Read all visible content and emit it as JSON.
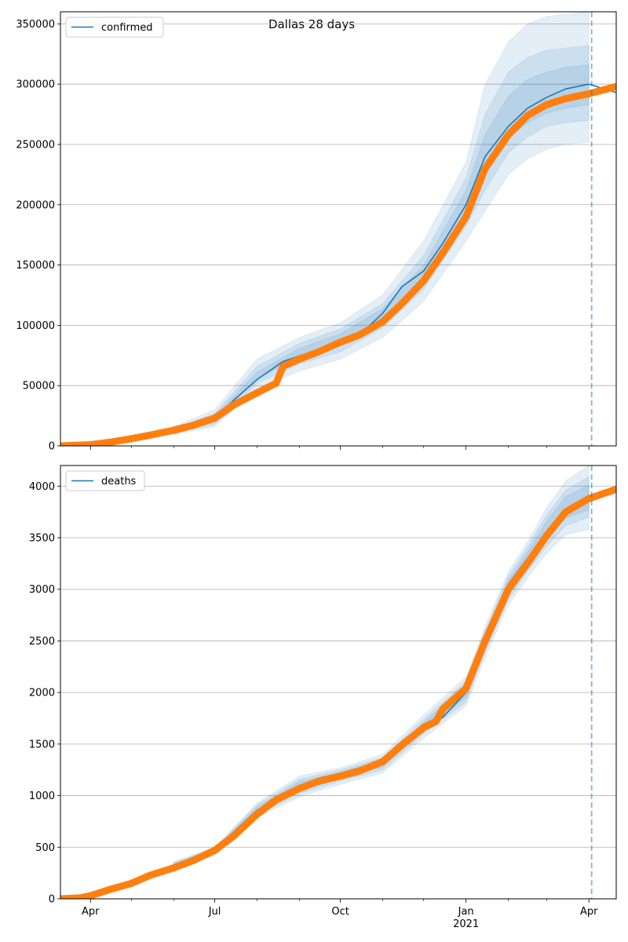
{
  "figure": {
    "title": "Dallas 28 days"
  },
  "colors": {
    "model": "#1f77b4",
    "observed": "#ff7f0e",
    "band": "#1f77b4",
    "grid": "#b0b0b0"
  },
  "x_axis": {
    "ticks": [
      {
        "date": "2020-04-01",
        "label": "Apr",
        "sublabel": ""
      },
      {
        "date": "2020-07-01",
        "label": "Jul",
        "sublabel": ""
      },
      {
        "date": "2020-10-01",
        "label": "Oct",
        "sublabel": ""
      },
      {
        "date": "2021-01-01",
        "label": "Jan",
        "sublabel": "2021"
      },
      {
        "date": "2021-04-01",
        "label": "Apr",
        "sublabel": ""
      }
    ]
  },
  "chart_data": [
    {
      "type": "line",
      "legend": "confirmed",
      "legend_position": "top-left",
      "grid": "horizontal",
      "xlim": [
        "2020-03-10",
        "2021-04-21"
      ],
      "ylim": [
        0,
        360000
      ],
      "y_ticks": [
        0,
        50000,
        100000,
        150000,
        200000,
        250000,
        300000,
        350000
      ],
      "forecast_start": "2021-04-03",
      "series": [
        {
          "name": "confirmed",
          "role": "model",
          "x": [
            "2020-03-10",
            "2020-04-01",
            "2020-05-01",
            "2020-06-01",
            "2020-07-01",
            "2020-07-15",
            "2020-08-01",
            "2020-08-20",
            "2020-09-15",
            "2020-10-15",
            "2020-11-01",
            "2020-11-15",
            "2020-12-01",
            "2020-12-15",
            "2021-01-01",
            "2021-01-15",
            "2021-02-01",
            "2021-02-15",
            "2021-03-01",
            "2021-03-15",
            "2021-04-01",
            "2021-04-21"
          ],
          "y": [
            0,
            500,
            5000,
            12000,
            22000,
            38000,
            55000,
            70000,
            80000,
            92000,
            110000,
            132000,
            145000,
            168000,
            200000,
            240000,
            265000,
            280000,
            289000,
            296000,
            300000,
            293000
          ]
        },
        {
          "name": "",
          "role": "observed",
          "x": [
            "2020-03-10",
            "2020-04-01",
            "2020-04-15",
            "2020-05-01",
            "2020-05-15",
            "2020-06-01",
            "2020-06-15",
            "2020-07-01",
            "2020-07-15",
            "2020-08-01",
            "2020-08-15",
            "2020-08-20",
            "2020-09-01",
            "2020-09-15",
            "2020-10-01",
            "2020-10-15",
            "2020-11-01",
            "2020-11-15",
            "2020-12-01",
            "2020-12-15",
            "2021-01-01",
            "2021-01-15",
            "2021-02-01",
            "2021-02-15",
            "2021-03-01",
            "2021-03-15",
            "2021-04-01",
            "2021-04-21"
          ],
          "y": [
            0,
            1000,
            3000,
            6000,
            9000,
            13000,
            17000,
            23000,
            34000,
            44000,
            52000,
            66000,
            72000,
            78000,
            86000,
            92000,
            103000,
            118000,
            137000,
            160000,
            190000,
            230000,
            258000,
            274000,
            283000,
            288000,
            292000,
            298000
          ]
        }
      ],
      "bands": [
        {
          "x": [
            "2020-06-01",
            "2020-07-01",
            "2020-08-01",
            "2020-09-01",
            "2020-10-01",
            "2020-11-01",
            "2020-12-01",
            "2021-01-01",
            "2021-01-15",
            "2021-02-01",
            "2021-02-15",
            "2021-03-01",
            "2021-03-15",
            "2021-04-01"
          ],
          "upper": [
            16000,
            30000,
            72000,
            90000,
            102000,
            125000,
            170000,
            235000,
            300000,
            335000,
            350000,
            356000,
            358000,
            360000
          ],
          "lower": [
            9000,
            16000,
            48000,
            62000,
            72000,
            90000,
            120000,
            170000,
            195000,
            225000,
            238000,
            246000,
            250000,
            252000
          ]
        },
        {
          "x": [
            "2020-06-01",
            "2020-07-01",
            "2020-08-01",
            "2020-09-01",
            "2020-10-01",
            "2020-11-01",
            "2020-12-01",
            "2021-01-01",
            "2021-01-15",
            "2021-02-01",
            "2021-02-15",
            "2021-03-01",
            "2021-03-15",
            "2021-04-01"
          ],
          "upper": [
            14500,
            27000,
            66000,
            85000,
            97000,
            118000,
            158000,
            222000,
            275000,
            310000,
            322000,
            328000,
            330000,
            332000
          ],
          "lower": [
            10000,
            18000,
            52000,
            68000,
            78000,
            98000,
            130000,
            182000,
            212000,
            243000,
            256000,
            265000,
            268000,
            270000
          ]
        },
        {
          "x": [
            "2020-06-01",
            "2020-07-01",
            "2020-08-01",
            "2020-09-01",
            "2020-10-01",
            "2020-11-01",
            "2020-12-01",
            "2021-01-01",
            "2021-01-15",
            "2021-02-01",
            "2021-02-15",
            "2021-03-01",
            "2021-03-15",
            "2021-04-01"
          ],
          "upper": [
            13500,
            25000,
            61000,
            81000,
            93000,
            114000,
            150000,
            212000,
            258000,
            290000,
            304000,
            310000,
            314000,
            316000
          ],
          "lower": [
            11000,
            20000,
            56000,
            73000,
            84000,
            104000,
            138000,
            190000,
            225000,
            255000,
            268000,
            276000,
            280000,
            283000
          ]
        }
      ]
    },
    {
      "type": "line",
      "legend": "deaths",
      "legend_position": "top-left",
      "grid": "horizontal",
      "xlim": [
        "2020-03-10",
        "2021-04-21"
      ],
      "ylim": [
        0,
        4200
      ],
      "y_ticks": [
        0,
        500,
        1000,
        1500,
        2000,
        2500,
        3000,
        3500,
        4000
      ],
      "forecast_start": "2021-04-03",
      "series": [
        {
          "name": "deaths",
          "role": "model",
          "x": [
            "2020-03-10",
            "2020-04-01",
            "2020-05-01",
            "2020-06-01",
            "2020-07-01",
            "2020-07-15",
            "2020-08-01",
            "2020-08-20",
            "2020-09-15",
            "2020-10-15",
            "2020-11-01",
            "2020-11-15",
            "2020-12-01",
            "2020-12-15",
            "2021-01-01",
            "2021-01-15",
            "2021-02-01",
            "2021-02-15",
            "2021-03-01",
            "2021-03-15",
            "2021-04-01",
            "2021-04-21"
          ],
          "y": [
            0,
            30,
            160,
            330,
            460,
            650,
            860,
            1000,
            1110,
            1210,
            1320,
            1480,
            1650,
            1760,
            2000,
            2500,
            3050,
            3300,
            3550,
            3780,
            3880,
            3960
          ]
        },
        {
          "name": "",
          "role": "observed",
          "x": [
            "2020-03-10",
            "2020-03-25",
            "2020-04-01",
            "2020-04-15",
            "2020-05-01",
            "2020-05-15",
            "2020-06-01",
            "2020-06-15",
            "2020-07-01",
            "2020-07-15",
            "2020-08-01",
            "2020-08-15",
            "2020-09-01",
            "2020-09-15",
            "2020-10-01",
            "2020-10-15",
            "2020-11-01",
            "2020-11-15",
            "2020-12-01",
            "2020-12-10",
            "2020-12-15",
            "2021-01-01",
            "2021-01-15",
            "2021-02-01",
            "2021-02-15",
            "2021-03-01",
            "2021-03-15",
            "2021-04-01",
            "2021-04-21"
          ],
          "y": [
            0,
            10,
            30,
            90,
            150,
            230,
            300,
            370,
            470,
            610,
            820,
            960,
            1070,
            1140,
            1190,
            1240,
            1330,
            1490,
            1660,
            1720,
            1840,
            2040,
            2500,
            3000,
            3250,
            3520,
            3750,
            3880,
            3970
          ]
        }
      ],
      "bands": [
        {
          "x": [
            "2020-06-01",
            "2020-07-01",
            "2020-08-01",
            "2020-09-01",
            "2020-10-01",
            "2020-11-01",
            "2020-12-01",
            "2021-01-01",
            "2021-01-15",
            "2021-02-01",
            "2021-02-15",
            "2021-03-01",
            "2021-03-15",
            "2021-04-01"
          ],
          "upper": [
            360,
            500,
            930,
            1190,
            1270,
            1400,
            1780,
            2150,
            2640,
            3170,
            3460,
            3790,
            4050,
            4200
          ],
          "lower": [
            300,
            420,
            790,
            990,
            1110,
            1220,
            1560,
            1870,
            2340,
            2850,
            3110,
            3350,
            3530,
            3580
          ]
        },
        {
          "x": [
            "2020-06-01",
            "2020-07-01",
            "2020-08-01",
            "2020-09-01",
            "2020-10-01",
            "2020-11-01",
            "2020-12-01",
            "2021-01-01",
            "2021-01-15",
            "2021-02-01",
            "2021-02-15",
            "2021-03-01",
            "2021-03-15",
            "2021-04-01"
          ],
          "upper": [
            350,
            490,
            910,
            1160,
            1250,
            1370,
            1740,
            2110,
            2600,
            3130,
            3410,
            3720,
            3960,
            4090
          ],
          "lower": [
            310,
            430,
            810,
            1020,
            1140,
            1250,
            1600,
            1910,
            2390,
            2900,
            3170,
            3420,
            3620,
            3700
          ]
        },
        {
          "x": [
            "2020-06-01",
            "2020-07-01",
            "2020-08-01",
            "2020-09-01",
            "2020-10-01",
            "2020-11-01",
            "2020-12-01",
            "2021-01-01",
            "2021-01-15",
            "2021-02-01",
            "2021-02-15",
            "2021-03-01",
            "2021-03-15",
            "2021-04-01"
          ],
          "upper": [
            340,
            480,
            890,
            1135,
            1230,
            1345,
            1710,
            2070,
            2560,
            3090,
            3360,
            3660,
            3900,
            4010
          ],
          "lower": [
            318,
            440,
            830,
            1050,
            1165,
            1280,
            1630,
            1950,
            2430,
            2940,
            3220,
            3480,
            3690,
            3770
          ]
        }
      ]
    }
  ]
}
